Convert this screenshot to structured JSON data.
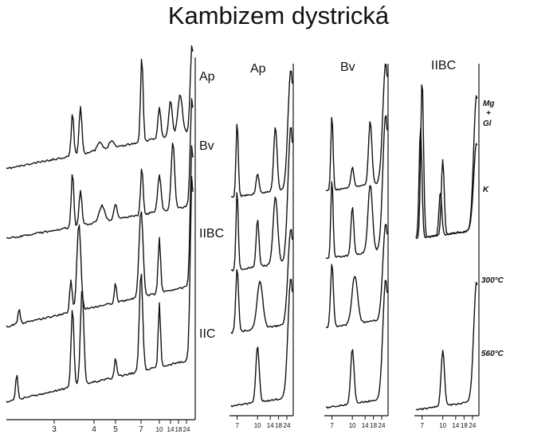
{
  "chart_data": {
    "type": "line",
    "title": "Kambizem dystrická",
    "panels": [
      {
        "name": "whole-soil",
        "x_ticks": [
          "3",
          "4",
          "5",
          "7",
          "10",
          "14",
          "18",
          "24"
        ],
        "series": [
          {
            "name": "Ap"
          },
          {
            "name": "Bv"
          },
          {
            "name": "IIBC"
          },
          {
            "name": "IIC"
          }
        ]
      },
      {
        "name": "clay-Ap",
        "label": "Ap",
        "x_ticks": [
          "7",
          "10",
          "14",
          "18",
          "24"
        ],
        "series": [
          {
            "name": "Mg + Gl"
          },
          {
            "name": "K"
          },
          {
            "name": "300°C"
          },
          {
            "name": "560°C"
          }
        ]
      },
      {
        "name": "clay-Bv",
        "label": "Bv",
        "x_ticks": [
          "7",
          "10",
          "14",
          "18",
          "24"
        ],
        "series": [
          {
            "name": "Mg + Gl"
          },
          {
            "name": "K"
          },
          {
            "name": "300°C"
          },
          {
            "name": "560°C"
          }
        ]
      },
      {
        "name": "clay-IIBC",
        "label": "IIBC",
        "x_ticks": [
          "7",
          "10",
          "14",
          "18",
          "24"
        ],
        "series": [
          {
            "name": "Mg + Gl"
          },
          {
            "name": "K"
          },
          {
            "name": "300°C"
          },
          {
            "name": "560°C"
          }
        ]
      }
    ],
    "treatment_labels": [
      "Mg",
      "+",
      "Gl",
      "K",
      "300°C",
      "560°C"
    ]
  }
}
